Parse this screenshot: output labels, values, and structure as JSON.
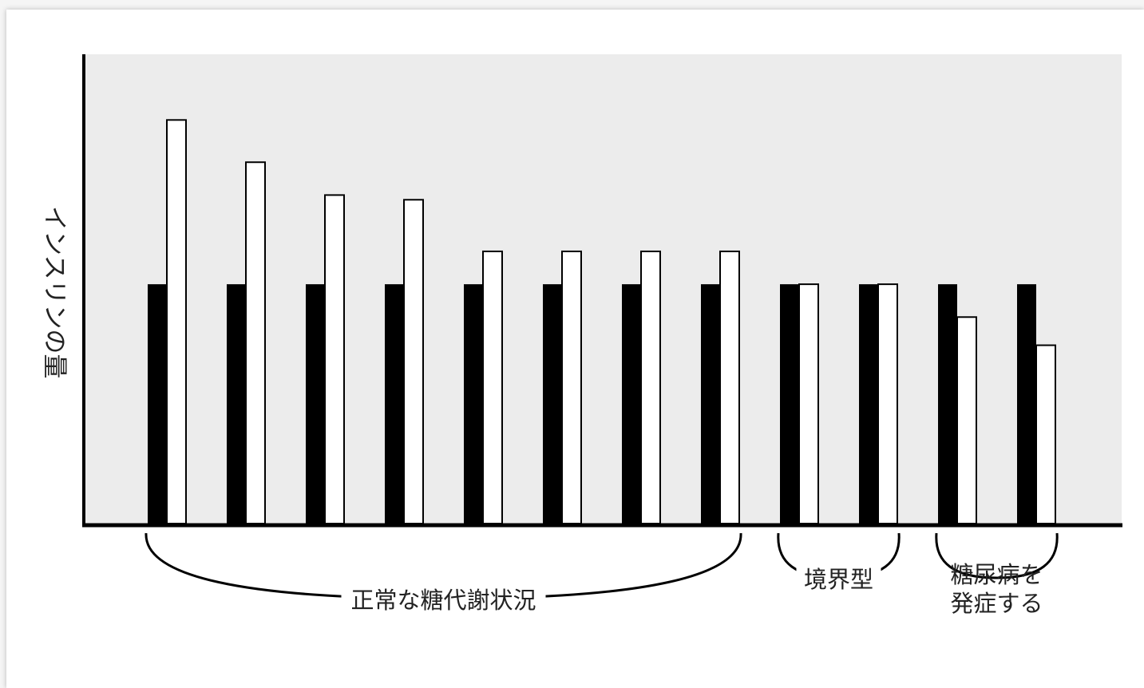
{
  "colors": {
    "plot_bg": "#ececec",
    "series_black": "#000000",
    "series_white": "#ffffff",
    "axis": "#000000"
  },
  "chart_data": {
    "type": "bar",
    "ylabel": "インスリンの量",
    "xlabel": "",
    "ylim": [
      0,
      100
    ],
    "grid": false,
    "categories": [
      "",
      "",
      "",
      "",
      "",
      "",
      "",
      "",
      "",
      "",
      "",
      ""
    ],
    "series": [
      {
        "values": [
          51,
          51,
          51,
          51,
          51,
          51,
          51,
          51,
          51,
          51,
          51,
          51
        ]
      },
      {
        "values": [
          86,
          77,
          70,
          69,
          58,
          58,
          58,
          58,
          51,
          51,
          44,
          38
        ]
      }
    ],
    "groups": [
      {
        "label": "正常な糖代謝状況",
        "from": 0,
        "to": 7
      },
      {
        "label": "境界型",
        "from": 8,
        "to": 9
      },
      {
        "label_lines": [
          "糖尿病を",
          "発症する"
        ],
        "from": 10,
        "to": 11
      }
    ]
  }
}
